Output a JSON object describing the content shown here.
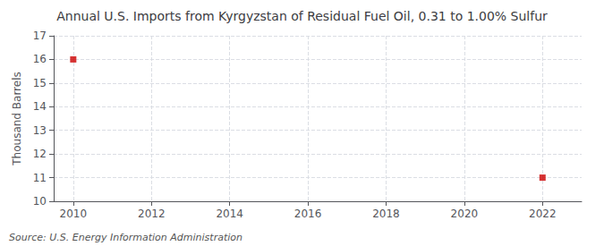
{
  "chart_data": {
    "type": "scatter",
    "title": "Annual U.S. Imports from Kyrgyzstan of Residual Fuel Oil, 0.31 to 1.00% Sulfur",
    "ylabel": "Thousand Barrels",
    "annotations": [
      "Source: U.S. Energy Information Administration"
    ],
    "x": [
      2010,
      2022
    ],
    "values": [
      16,
      11
    ],
    "color": "#cc0000",
    "marker": "square",
    "xlim": [
      2009.5,
      2023.0
    ],
    "ylim": [
      10,
      17
    ],
    "xticks": [
      2010,
      2012,
      2014,
      2016,
      2018,
      2020,
      2022
    ],
    "yticks": [
      10,
      11,
      12,
      13,
      14,
      15,
      16,
      17
    ],
    "grid": true
  }
}
